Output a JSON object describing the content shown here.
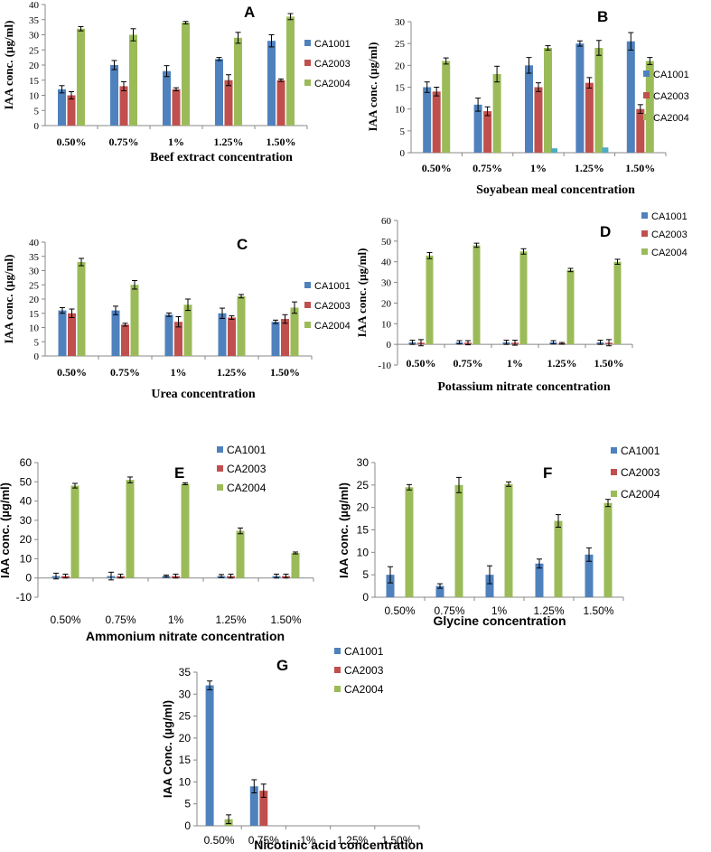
{
  "colors": {
    "CA1001": "#4f81bd",
    "CA2003": "#c0504d",
    "CA2004": "#9bbb59",
    "stray": "#4bacc6"
  },
  "chart_data": [
    {
      "panel": "A",
      "type": "bar",
      "font": "serif",
      "title": "A",
      "categories": [
        "0.50%",
        "0.75%",
        "1%",
        "1.25%",
        "1.50%"
      ],
      "xlabel": "Beef extract concentration",
      "ylabel": "IAA conc. (µg/ml)",
      "ylim": [
        0,
        40
      ],
      "yticks": [
        "0",
        "5",
        "10",
        "15",
        "20",
        "25",
        "30",
        "35",
        "40"
      ],
      "ytick_values": [
        0,
        5,
        10,
        15,
        20,
        25,
        30,
        35,
        40
      ],
      "legend": [
        "CA1001",
        "CA2003",
        "CA2004"
      ],
      "series": [
        {
          "name": "CA1001",
          "values": [
            12,
            20,
            18,
            22,
            28
          ],
          "errors": [
            1.2,
            1.5,
            1.8,
            0.5,
            2
          ]
        },
        {
          "name": "CA2003",
          "values": [
            10,
            13,
            12,
            15,
            15
          ],
          "errors": [
            1.2,
            1.5,
            0.5,
            1.8,
            0.4
          ]
        },
        {
          "name": "CA2004",
          "values": [
            32,
            30,
            34,
            29,
            36
          ],
          "errors": [
            0.7,
            2,
            0.4,
            1.8,
            1
          ]
        }
      ]
    },
    {
      "panel": "B",
      "type": "bar",
      "font": "serif",
      "title": "B",
      "categories": [
        "0.50%",
        "0.75%",
        "1%",
        "1.25%",
        "1.50%"
      ],
      "xlabel": "Soyabean meal concentration",
      "ylabel": "IAA conc. (µg/ml)",
      "ylim": [
        0,
        30
      ],
      "yticks": [
        "0",
        "5",
        "10",
        "15",
        "20",
        "25",
        "30"
      ],
      "ytick_values": [
        0,
        5,
        10,
        15,
        20,
        25,
        30
      ],
      "legend": [
        "CA1001",
        "CA2003",
        "CA2004"
      ],
      "series": [
        {
          "name": "CA1001",
          "values": [
            15,
            11,
            20,
            25,
            25.5
          ],
          "errors": [
            1.2,
            1.5,
            1.8,
            0.6,
            2
          ]
        },
        {
          "name": "CA2003",
          "values": [
            14,
            9.5,
            15,
            16,
            10
          ],
          "errors": [
            1,
            1,
            1,
            1.2,
            1
          ]
        },
        {
          "name": "CA2004",
          "values": [
            21,
            18,
            24,
            24,
            21
          ],
          "errors": [
            0.7,
            1.8,
            0.5,
            1.7,
            0.8
          ]
        }
      ],
      "extra_marks": [
        {
          "category_index": 2,
          "value": 1
        },
        {
          "category_index": 3,
          "value": 1.2
        }
      ]
    },
    {
      "panel": "C",
      "type": "bar",
      "font": "serif",
      "title": "C",
      "categories": [
        "0.50%",
        "0.75%",
        "1%",
        "1.25%",
        "1.50%"
      ],
      "xlabel": "Urea concentration",
      "ylabel": "IAA conc. (µg/ml)",
      "ylim": [
        0,
        40
      ],
      "yticks": [
        "0",
        "5",
        "10",
        "15",
        "20",
        "25",
        "30",
        "35",
        "40"
      ],
      "ytick_values": [
        0,
        5,
        10,
        15,
        20,
        25,
        30,
        35,
        40
      ],
      "legend": [
        "CA1001",
        "CA2003",
        "CA2004"
      ],
      "series": [
        {
          "name": "CA1001",
          "values": [
            16,
            16,
            14.5,
            15,
            12
          ],
          "errors": [
            1,
            1.5,
            0.6,
            1.8,
            0.6
          ]
        },
        {
          "name": "CA2003",
          "values": [
            15,
            11,
            12,
            13.5,
            13
          ],
          "errors": [
            1.5,
            0.5,
            1.8,
            0.6,
            1.5
          ]
        },
        {
          "name": "CA2004",
          "values": [
            33,
            25,
            18,
            21,
            17
          ],
          "errors": [
            1.3,
            1.5,
            2,
            0.6,
            2
          ]
        }
      ]
    },
    {
      "panel": "D",
      "type": "bar",
      "font": "serif",
      "title": "D",
      "categories": [
        "0.50%",
        "0.75%",
        "1%",
        "1.25%",
        "1.50%"
      ],
      "xlabel": "Potassium nitrate concentration",
      "ylabel": "IAA conc. (µg/ml)",
      "ylim": [
        -10,
        60
      ],
      "yticks": [
        "-10",
        "0",
        "10",
        "20",
        "30",
        "40",
        "50",
        "60"
      ],
      "ytick_values": [
        -10,
        0,
        10,
        20,
        30,
        40,
        50,
        60
      ],
      "legend": [
        "CA1001",
        "CA2003",
        "CA2004"
      ],
      "series": [
        {
          "name": "CA1001",
          "values": [
            1,
            1,
            1,
            1,
            1
          ],
          "errors": [
            1,
            0.8,
            1,
            0.8,
            1
          ]
        },
        {
          "name": "CA2003",
          "values": [
            0.8,
            0.8,
            0.8,
            0.5,
            0.8
          ],
          "errors": [
            1.5,
            1,
            1.2,
            0.4,
            1.5
          ]
        },
        {
          "name": "CA2004",
          "values": [
            43,
            48,
            45,
            36,
            40
          ],
          "errors": [
            1.5,
            1,
            1.3,
            0.8,
            1.2
          ]
        }
      ]
    },
    {
      "panel": "E",
      "type": "bar",
      "font": "sans",
      "title": "E",
      "categories": [
        "0.50%",
        "0.75%",
        "1%",
        "1.25%",
        "1.50%"
      ],
      "xlabel": "Ammonium nitrate concentration",
      "ylabel": "IAA conc. (µg/ml)",
      "ylim": [
        -10,
        60
      ],
      "yticks": [
        "-10",
        "0",
        "10",
        "20",
        "30",
        "40",
        "50",
        "60"
      ],
      "ytick_values": [
        -10,
        0,
        10,
        20,
        30,
        40,
        50,
        60
      ],
      "legend": [
        "CA1001",
        "CA2003",
        "CA2004"
      ],
      "series": [
        {
          "name": "CA1001",
          "values": [
            1,
            1,
            1,
            1,
            1
          ],
          "errors": [
            1.5,
            2,
            0.5,
            0.8,
            1
          ]
        },
        {
          "name": "CA2003",
          "values": [
            1,
            1,
            1,
            1,
            1
          ],
          "errors": [
            1,
            1,
            1,
            1,
            1
          ]
        },
        {
          "name": "CA2004",
          "values": [
            48,
            51,
            49,
            24.5,
            13
          ],
          "errors": [
            1.2,
            1.5,
            0.5,
            1.5,
            0.5
          ]
        }
      ]
    },
    {
      "panel": "F",
      "type": "bar",
      "font": "sans",
      "title": "F",
      "categories": [
        "0.50%",
        "0.75%",
        "1%",
        "1.25%",
        "1.50%"
      ],
      "xlabel": "Glycine concentration",
      "ylabel": "IAA conc. (µg/ml)",
      "ylim": [
        0,
        30
      ],
      "yticks": [
        "0",
        "5",
        "10",
        "15",
        "20",
        "25",
        "30"
      ],
      "ytick_values": [
        0,
        5,
        10,
        15,
        20,
        25,
        30
      ],
      "legend": [
        "CA1001",
        "CA2003",
        "CA2004"
      ],
      "series": [
        {
          "name": "CA1001",
          "values": [
            5,
            2.5,
            5,
            7.5,
            9.5
          ],
          "errors": [
            1.8,
            0.5,
            2,
            1,
            1.5
          ]
        },
        {
          "name": "CA2003",
          "values": [
            0,
            0,
            0,
            0,
            0
          ],
          "errors": [
            0,
            0,
            0,
            0,
            0
          ]
        },
        {
          "name": "CA2004",
          "values": [
            24.5,
            25,
            25.2,
            17,
            21
          ],
          "errors": [
            0.6,
            1.7,
            0.5,
            1.4,
            0.8
          ]
        }
      ]
    },
    {
      "panel": "G",
      "type": "bar",
      "font": "sans",
      "title": "G",
      "categories": [
        "0.50%",
        "0.75%",
        "1%",
        "1.25%",
        "1.50%"
      ],
      "xlabel": "Nicotinic acid concentration",
      "ylabel": "IAA Conc. (µg/ml)",
      "ylim": [
        0,
        35
      ],
      "yticks": [
        "0",
        "5",
        "10",
        "15",
        "20",
        "25",
        "30",
        "35"
      ],
      "ytick_values": [
        0,
        5,
        10,
        15,
        20,
        25,
        30,
        35
      ],
      "legend": [
        "CA1001",
        "CA2003",
        "CA2004"
      ],
      "series": [
        {
          "name": "CA1001",
          "values": [
            32,
            9,
            0,
            0,
            0
          ],
          "errors": [
            1,
            1.5,
            0,
            0,
            0
          ]
        },
        {
          "name": "CA2003",
          "values": [
            0,
            8,
            0,
            0,
            0
          ],
          "errors": [
            0,
            1.5,
            0,
            0,
            0
          ]
        },
        {
          "name": "CA2004",
          "values": [
            1.5,
            0,
            0,
            0,
            0
          ],
          "errors": [
            1,
            0,
            0,
            0,
            0
          ]
        }
      ]
    }
  ]
}
